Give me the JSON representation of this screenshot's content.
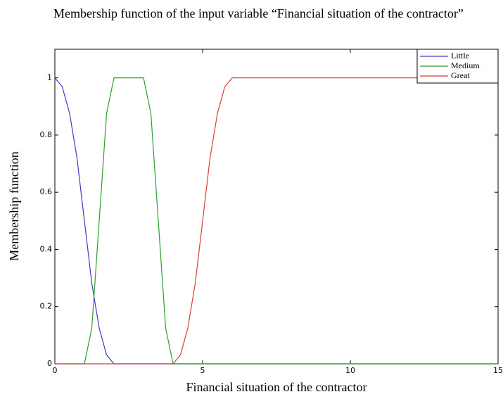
{
  "chart_data": {
    "type": "line",
    "title": "Membership function of the input variable “Financial situation of the contractor”",
    "xlabel": "Financial situation of the contractor",
    "ylabel": "Membership function",
    "x": [
      0,
      0.25,
      0.5,
      0.75,
      1,
      1.25,
      1.5,
      1.75,
      2,
      2.25,
      2.5,
      2.75,
      3,
      3.25,
      3.5,
      3.75,
      4,
      4.25,
      4.5,
      4.75,
      5,
      5.25,
      5.5,
      5.75,
      6,
      15
    ],
    "series": [
      {
        "name": "Little",
        "color": "#3c3cc8",
        "values": [
          1,
          0.96875,
          0.875,
          0.71875,
          0.5,
          0.28125,
          0.125,
          0.03125,
          0,
          0,
          0,
          0,
          0,
          0,
          0,
          0,
          0,
          0,
          0,
          0,
          0,
          0,
          0,
          0,
          0,
          0
        ]
      },
      {
        "name": "Medium",
        "color": "#2e9e2e",
        "values": [
          0,
          0,
          0,
          0,
          0,
          0.125,
          0.5,
          0.875,
          1,
          1,
          1,
          1,
          1,
          0.875,
          0.5,
          0.125,
          0,
          0,
          0,
          0,
          0,
          0,
          0,
          0,
          0,
          0
        ]
      },
      {
        "name": "Great",
        "color": "#d83c3c",
        "values": [
          0,
          0,
          0,
          0,
          0,
          0,
          0,
          0,
          0,
          0,
          0,
          0,
          0,
          0,
          0,
          0,
          0,
          0.03125,
          0.125,
          0.28125,
          0.5,
          0.71875,
          0.875,
          0.96875,
          1,
          1
        ]
      }
    ],
    "xlim": [
      0,
      15
    ],
    "xticks": [
      0,
      5,
      10,
      15
    ],
    "ylim": [
      0,
      1.1
    ],
    "yticks": [
      0,
      0.2,
      0.4,
      0.6,
      0.8,
      1
    ],
    "legend": "upper right"
  }
}
